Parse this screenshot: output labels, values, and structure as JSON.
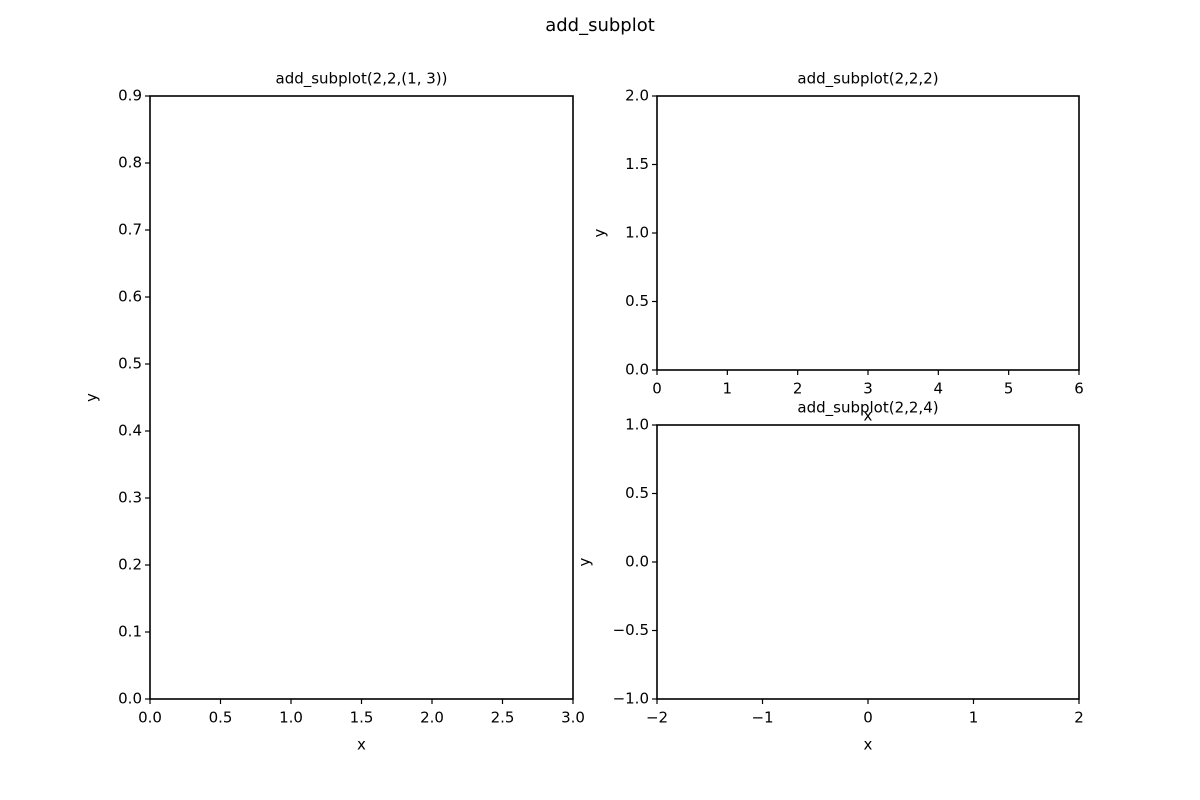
{
  "title": "add_subplot",
  "chart_data": [
    {
      "type": "line",
      "title": "add_subplot(2,2,(1, 3))",
      "xlabel": "x",
      "ylabel": "y",
      "xlim": [
        0,
        3
      ],
      "ylim": [
        0,
        0.9
      ],
      "xticks": [
        {
          "value": 0,
          "label": "0.0"
        },
        0.5,
        {
          "value": 1,
          "label": "1.0"
        },
        1.5,
        {
          "value": 2,
          "label": "2.0"
        },
        2.5,
        {
          "value": 3,
          "label": "3.0"
        }
      ],
      "yticks": [
        {
          "value": 0,
          "label": "0.0"
        },
        0.1,
        0.2,
        0.3,
        0.4,
        0.5,
        0.6,
        0.7,
        0.8,
        0.9
      ]
    },
    {
      "type": "line",
      "title": "add_subplot(2,2,2)",
      "xlabel": "x",
      "ylabel": "y",
      "xlim": [
        0,
        6
      ],
      "ylim": [
        0,
        2
      ],
      "xticks": [
        0,
        1,
        2,
        3,
        4,
        5,
        6
      ],
      "yticks": [
        {
          "value": 0,
          "label": "0.0"
        },
        0.5,
        {
          "value": 1,
          "label": "1.0"
        },
        1.5,
        {
          "value": 2,
          "label": "2.0"
        }
      ]
    },
    {
      "type": "line",
      "title": "add_subplot(2,2,4)",
      "xlabel": "x",
      "ylabel": "y",
      "xlim": [
        -2,
        2
      ],
      "ylim": [
        -1,
        1
      ],
      "xticks": [
        {
          "value": -2,
          "label": "−2"
        },
        {
          "value": -1,
          "label": "−1"
        },
        0,
        1,
        2
      ],
      "yticks": [
        {
          "value": -1,
          "label": "−1.0"
        },
        {
          "value": -0.5,
          "label": "−0.5"
        },
        {
          "value": 0,
          "label": "0.0"
        },
        0.5,
        {
          "value": 1,
          "label": "1.0"
        }
      ]
    }
  ]
}
